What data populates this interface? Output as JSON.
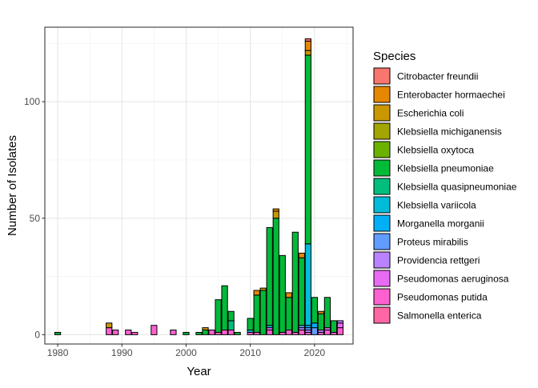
{
  "chart_data": {
    "type": "bar",
    "stacked": true,
    "xlabel": "Year",
    "ylabel": "Number of Isolates",
    "xlim": [
      1978,
      2026
    ],
    "ylim": [
      -4,
      132
    ],
    "x_ticks": [
      1980,
      1990,
      2000,
      2010,
      2020
    ],
    "y_ticks": [
      0,
      50,
      100
    ],
    "grid": true,
    "legend_placement": "right",
    "legend": {
      "title": "Species",
      "entries": [
        {
          "name": "Citrobacter freundii",
          "color": "#F8766D"
        },
        {
          "name": "Enterobacter hormaechei",
          "color": "#E58700"
        },
        {
          "name": "Escherichia coli",
          "color": "#C99800"
        },
        {
          "name": "Klebsiella michiganensis",
          "color": "#A3A500"
        },
        {
          "name": "Klebsiella oxytoca",
          "color": "#6BB100"
        },
        {
          "name": "Klebsiella pneumoniae",
          "color": "#00BA38"
        },
        {
          "name": "Klebsiella quasipneumoniae",
          "color": "#00BF7D"
        },
        {
          "name": "Klebsiella variicola",
          "color": "#00BCD8"
        },
        {
          "name": "Morganella morganii",
          "color": "#00B0F6"
        },
        {
          "name": "Proteus mirabilis",
          "color": "#619CFF"
        },
        {
          "name": "Providencia rettgeri",
          "color": "#B983FF"
        },
        {
          "name": "Pseudomonas aeruginosa",
          "color": "#E76BF3"
        },
        {
          "name": "Pseudomonas putida",
          "color": "#FD61D1"
        },
        {
          "name": "Salmonella enterica",
          "color": "#FF67A4"
        }
      ]
    },
    "bars": [
      {
        "year": 1980,
        "segments": [
          {
            "species": "Klebsiella pneumoniae",
            "value": 1
          }
        ]
      },
      {
        "year": 1988,
        "segments": [
          {
            "species": "Pseudomonas putida",
            "value": 3
          },
          {
            "species": "Escherichia coli",
            "value": 2
          }
        ]
      },
      {
        "year": 1989,
        "segments": [
          {
            "species": "Pseudomonas putida",
            "value": 2
          }
        ]
      },
      {
        "year": 1991,
        "segments": [
          {
            "species": "Pseudomonas putida",
            "value": 2
          }
        ]
      },
      {
        "year": 1992,
        "segments": [
          {
            "species": "Pseudomonas putida",
            "value": 1
          }
        ]
      },
      {
        "year": 1995,
        "segments": [
          {
            "species": "Pseudomonas putida",
            "value": 4
          }
        ]
      },
      {
        "year": 1998,
        "segments": [
          {
            "species": "Pseudomonas putida",
            "value": 2
          }
        ]
      },
      {
        "year": 2000,
        "segments": [
          {
            "species": "Klebsiella pneumoniae",
            "value": 1
          }
        ]
      },
      {
        "year": 2002,
        "segments": [
          {
            "species": "Klebsiella pneumoniae",
            "value": 1
          }
        ]
      },
      {
        "year": 2003,
        "segments": [
          {
            "species": "Klebsiella pneumoniae",
            "value": 2
          },
          {
            "species": "Escherichia coli",
            "value": 1
          }
        ]
      },
      {
        "year": 2004,
        "segments": [
          {
            "species": "Pseudomonas putida",
            "value": 2
          }
        ]
      },
      {
        "year": 2005,
        "segments": [
          {
            "species": "Pseudomonas putida",
            "value": 1
          },
          {
            "species": "Klebsiella pneumoniae",
            "value": 14
          }
        ]
      },
      {
        "year": 2006,
        "segments": [
          {
            "species": "Pseudomonas putida",
            "value": 2
          },
          {
            "species": "Klebsiella pneumoniae",
            "value": 19
          }
        ]
      },
      {
        "year": 2007,
        "segments": [
          {
            "species": "Pseudomonas putida",
            "value": 2
          },
          {
            "species": "Klebsiella quasipneumoniae",
            "value": 4
          },
          {
            "species": "Klebsiella pneumoniae",
            "value": 4
          }
        ]
      },
      {
        "year": 2008,
        "segments": [
          {
            "species": "Klebsiella pneumoniae",
            "value": 1
          }
        ]
      },
      {
        "year": 2010,
        "segments": [
          {
            "species": "Pseudomonas putida",
            "value": 1
          },
          {
            "species": "Klebsiella variicola",
            "value": 1
          },
          {
            "species": "Klebsiella pneumoniae",
            "value": 5
          }
        ]
      },
      {
        "year": 2011,
        "segments": [
          {
            "species": "Pseudomonas putida",
            "value": 1
          },
          {
            "species": "Klebsiella pneumoniae",
            "value": 16
          },
          {
            "species": "Enterobacter hormaechei",
            "value": 2
          }
        ]
      },
      {
        "year": 2012,
        "segments": [
          {
            "species": "Klebsiella pneumoniae",
            "value": 19
          },
          {
            "species": "Escherichia coli",
            "value": 1
          }
        ]
      },
      {
        "year": 2013,
        "segments": [
          {
            "species": "Pseudomonas putida",
            "value": 2
          },
          {
            "species": "Pseudomonas aeruginosa",
            "value": 1
          },
          {
            "species": "Klebsiella variicola",
            "value": 1
          },
          {
            "species": "Klebsiella pneumoniae",
            "value": 42
          }
        ]
      },
      {
        "year": 2014,
        "segments": [
          {
            "species": "Klebsiella pneumoniae",
            "value": 50
          },
          {
            "species": "Escherichia coli",
            "value": 3
          },
          {
            "species": "Enterobacter hormaechei",
            "value": 1
          }
        ]
      },
      {
        "year": 2015,
        "segments": [
          {
            "species": "Pseudomonas putida",
            "value": 1
          },
          {
            "species": "Klebsiella pneumoniae",
            "value": 33
          }
        ]
      },
      {
        "year": 2016,
        "segments": [
          {
            "species": "Pseudomonas putida",
            "value": 2
          },
          {
            "species": "Klebsiella pneumoniae",
            "value": 14
          },
          {
            "species": "Enterobacter hormaechei",
            "value": 2
          }
        ]
      },
      {
        "year": 2017,
        "segments": [
          {
            "species": "Pseudomonas putida",
            "value": 1
          },
          {
            "species": "Klebsiella pneumoniae",
            "value": 43
          }
        ]
      },
      {
        "year": 2018,
        "segments": [
          {
            "species": "Pseudomonas putida",
            "value": 2
          },
          {
            "species": "Providencia rettgeri",
            "value": 1
          },
          {
            "species": "Proteus mirabilis",
            "value": 1
          },
          {
            "species": "Klebsiella pneumoniae",
            "value": 29
          },
          {
            "species": "Enterobacter hormaechei",
            "value": 2
          }
        ]
      },
      {
        "year": 2019,
        "segments": [
          {
            "species": "Pseudomonas putida",
            "value": 1
          },
          {
            "species": "Providencia rettgeri",
            "value": 1
          },
          {
            "species": "Proteus mirabilis",
            "value": 1
          },
          {
            "species": "Morganella morganii",
            "value": 1
          },
          {
            "species": "Klebsiella variicola",
            "value": 35
          },
          {
            "species": "Klebsiella pneumoniae",
            "value": 81
          },
          {
            "species": "Escherichia coli",
            "value": 2
          },
          {
            "species": "Enterobacter hormaechei",
            "value": 4
          },
          {
            "species": "Citrobacter freundii",
            "value": 1
          }
        ]
      },
      {
        "year": 2020,
        "segments": [
          {
            "species": "Proteus mirabilis",
            "value": 3
          },
          {
            "species": "Morganella morganii",
            "value": 2
          },
          {
            "species": "Klebsiella pneumoniae",
            "value": 11
          }
        ]
      },
      {
        "year": 2021,
        "segments": [
          {
            "species": "Pseudomonas putida",
            "value": 1
          },
          {
            "species": "Providencia rettgeri",
            "value": 1
          },
          {
            "species": "Klebsiella pneumoniae",
            "value": 7
          },
          {
            "species": "Enterobacter hormaechei",
            "value": 1
          }
        ]
      },
      {
        "year": 2022,
        "segments": [
          {
            "species": "Pseudomonas putida",
            "value": 2
          },
          {
            "species": "Pseudomonas aeruginosa",
            "value": 1
          },
          {
            "species": "Klebsiella pneumoniae",
            "value": 13
          }
        ]
      },
      {
        "year": 2023,
        "segments": [
          {
            "species": "Pseudomonas putida",
            "value": 1
          },
          {
            "species": "Klebsiella pneumoniae",
            "value": 5
          }
        ]
      },
      {
        "year": 2024,
        "segments": [
          {
            "species": "Pseudomonas putida",
            "value": 3
          },
          {
            "species": "Pseudomonas aeruginosa",
            "value": 2
          },
          {
            "species": "Providencia rettgeri",
            "value": 1
          }
        ]
      }
    ]
  }
}
